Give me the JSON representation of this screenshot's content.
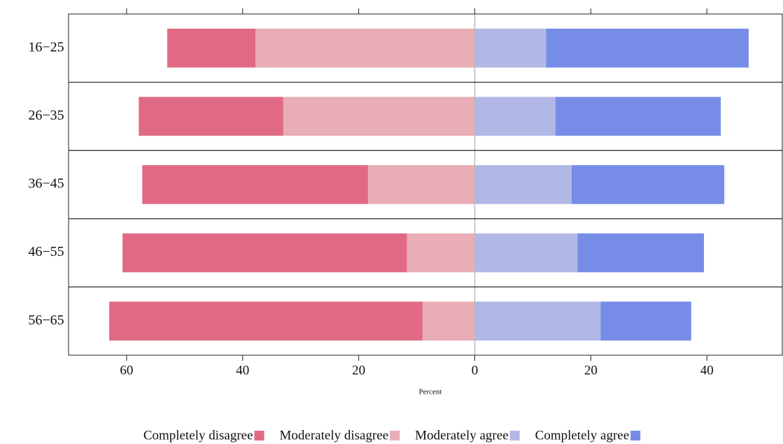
{
  "chart_data": {
    "type": "diverging-bar",
    "x_label": "Percent",
    "categories": [
      "16−25",
      "26−35",
      "36−45",
      "46−55",
      "56−65"
    ],
    "series": [
      {
        "name": "Completely disagree",
        "color": "#e06a84",
        "side": "left",
        "values": [
          15.2,
          24.9,
          38.9,
          49.0,
          54.0
        ]
      },
      {
        "name": "Moderately disagree",
        "color": "#e8adb6",
        "side": "left",
        "values": [
          37.8,
          33.0,
          18.4,
          11.7,
          9.0
        ]
      },
      {
        "name": "Moderately agree",
        "color": "#b1b8e6",
        "side": "right",
        "values": [
          12.3,
          13.9,
          16.7,
          17.7,
          21.7
        ]
      },
      {
        "name": "Completely agree",
        "color": "#778ce6",
        "side": "right",
        "values": [
          34.9,
          28.5,
          26.3,
          21.8,
          15.6
        ]
      }
    ],
    "xlim": [
      -70,
      53
    ],
    "xticks": [
      {
        "value": -60,
        "label": "60"
      },
      {
        "value": -40,
        "label": "40"
      },
      {
        "value": -20,
        "label": "20"
      },
      0,
      20,
      40
    ]
  }
}
